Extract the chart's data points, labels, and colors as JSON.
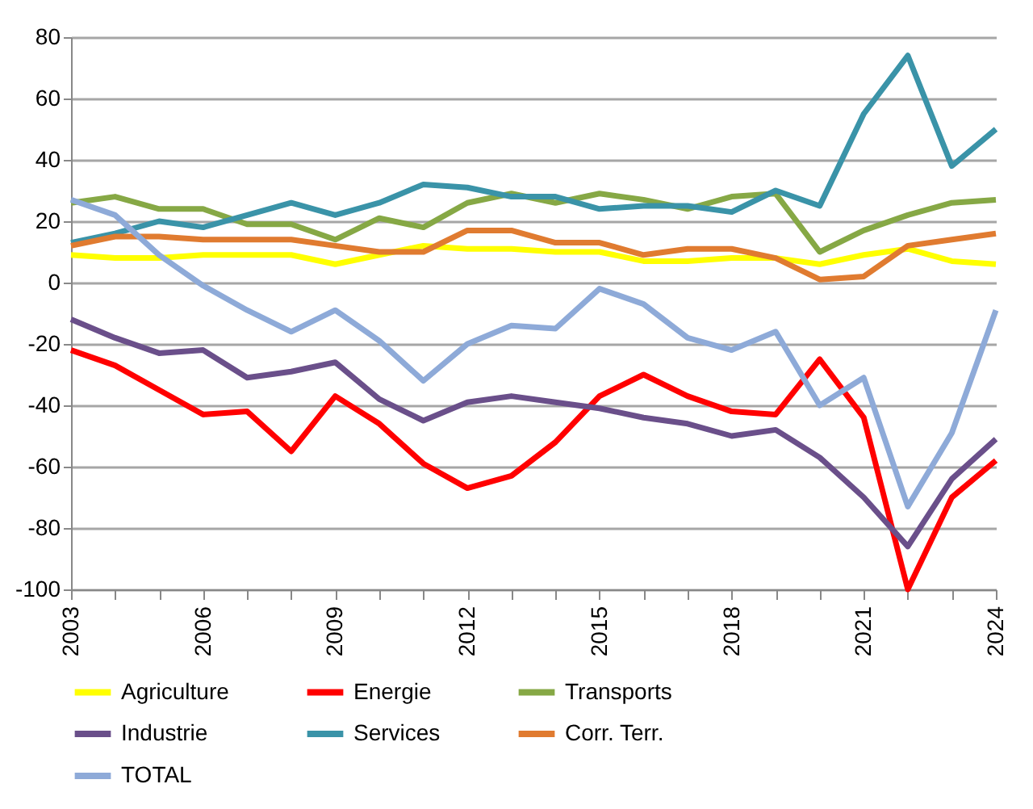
{
  "chart_data": {
    "type": "line",
    "x": [
      2003,
      2004,
      2005,
      2006,
      2007,
      2008,
      2009,
      2010,
      2011,
      2012,
      2013,
      2014,
      2015,
      2016,
      2017,
      2018,
      2019,
      2020,
      2021,
      2022,
      2023,
      2024
    ],
    "xlim": [
      2003,
      2024
    ],
    "xticks": [
      2003,
      {
        "value": 2004,
        "label": null
      },
      {
        "value": 2005,
        "label": null
      },
      2006,
      {
        "value": 2007,
        "label": null
      },
      {
        "value": 2008,
        "label": null
      },
      2009,
      {
        "value": 2010,
        "label": null
      },
      {
        "value": 2011,
        "label": null
      },
      2012,
      {
        "value": 2013,
        "label": null
      },
      {
        "value": 2014,
        "label": null
      },
      2015,
      {
        "value": 2016,
        "label": null
      },
      {
        "value": 2017,
        "label": null
      },
      2018,
      {
        "value": 2019,
        "label": null
      },
      {
        "value": 2020,
        "label": null
      },
      2021,
      {
        "value": 2022,
        "label": null
      },
      {
        "value": 2023,
        "label": null
      },
      2024
    ],
    "ylim": [
      -100,
      80
    ],
    "yticks": [
      -100,
      -80,
      -60,
      -40,
      -20,
      0,
      20,
      40,
      60,
      80
    ],
    "grid": "y",
    "legend": "bottom",
    "marker": "none",
    "line_style": "solid",
    "series": [
      {
        "name": "Agriculture",
        "color": "#ffff00",
        "values": [
          9,
          8,
          8,
          9,
          9,
          9,
          6,
          9,
          12,
          11,
          11,
          10,
          10,
          7,
          7,
          8,
          8,
          6,
          9,
          11,
          7,
          6
        ]
      },
      {
        "name": "Energie",
        "color": "#ff0000",
        "values": [
          -22,
          -27,
          -35,
          -43,
          -42,
          -55,
          -37,
          -46,
          -59,
          -67,
          -63,
          -52,
          -37,
          -30,
          -37,
          -42,
          -43,
          -25,
          -44,
          -100,
          -70,
          -58
        ]
      },
      {
        "name": "Transports",
        "color": "#86a845",
        "values": [
          26,
          28,
          24,
          24,
          19,
          19,
          14,
          21,
          18,
          26,
          29,
          26,
          29,
          27,
          24,
          28,
          29,
          10,
          17,
          22,
          26,
          27
        ]
      },
      {
        "name": "Industrie",
        "color": "#6a4f8a",
        "values": [
          -12,
          -18,
          -23,
          -22,
          -31,
          -29,
          -26,
          -38,
          -45,
          -39,
          -37,
          -39,
          -41,
          -44,
          -46,
          -50,
          -48,
          -57,
          -70,
          -86,
          -64,
          -51
        ]
      },
      {
        "name": "Services",
        "color": "#3a93a8",
        "values": [
          13,
          16,
          20,
          18,
          22,
          26,
          22,
          26,
          32,
          31,
          28,
          28,
          24,
          25,
          25,
          23,
          30,
          25,
          55,
          74,
          38,
          50
        ]
      },
      {
        "name": "Corr. Terr.",
        "color": "#e07b30",
        "values": [
          12,
          15,
          15,
          14,
          14,
          14,
          12,
          10,
          10,
          17,
          17,
          13,
          13,
          9,
          11,
          11,
          8,
          1,
          2,
          12,
          14,
          16
        ]
      },
      {
        "name": "TOTAL",
        "color": "#8eaad8",
        "values": [
          27,
          22,
          9,
          -1,
          -9,
          -16,
          -9,
          -19,
          -32,
          -20,
          -14,
          -15,
          -2,
          -7,
          -18,
          -22,
          -16,
          -40,
          -31,
          -73,
          -49,
          -9
        ]
      }
    ]
  }
}
